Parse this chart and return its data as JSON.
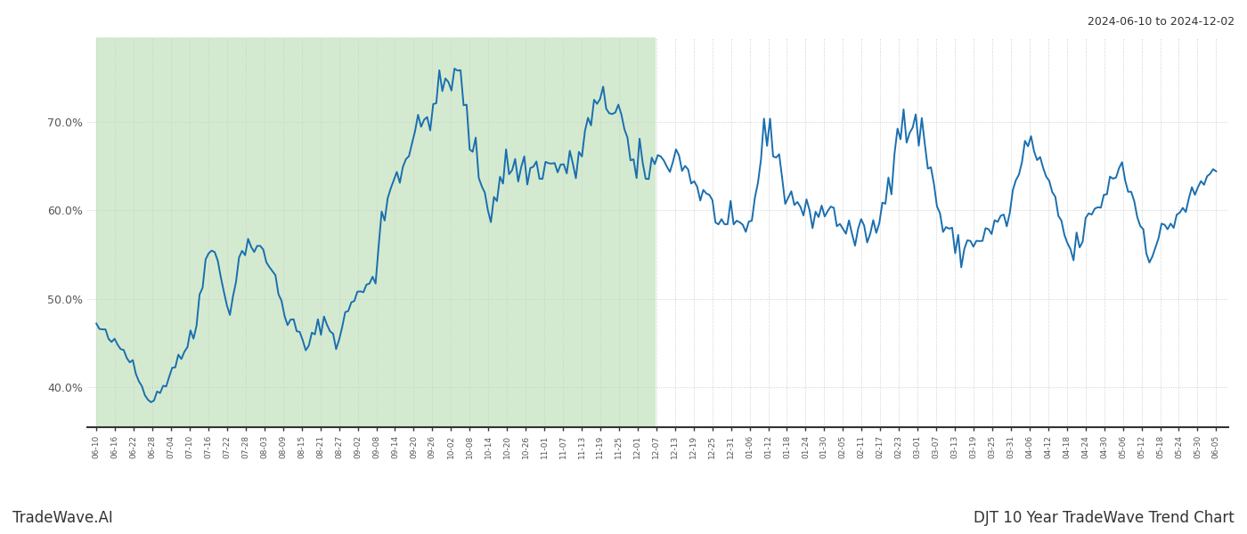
{
  "title_right": "2024-06-10 to 2024-12-02",
  "footer_left": "TradeWave.AI",
  "footer_right": "DJT 10 Year TradeWave Trend Chart",
  "shaded_color": "#d4ead0",
  "line_color": "#1a6faf",
  "line_width": 1.4,
  "ylim": [
    0.355,
    0.795
  ],
  "yticks": [
    0.4,
    0.5,
    0.6,
    0.7
  ],
  "ytick_labels": [
    "40.0%",
    "50.0%",
    "60.0%",
    "70.0%"
  ],
  "x_labels": [
    "06-10",
    "06-16",
    "06-22",
    "06-28",
    "07-04",
    "07-10",
    "07-16",
    "07-22",
    "07-28",
    "08-03",
    "08-09",
    "08-15",
    "08-21",
    "08-27",
    "09-02",
    "09-08",
    "09-14",
    "09-20",
    "09-26",
    "10-02",
    "10-08",
    "10-14",
    "10-20",
    "10-26",
    "11-01",
    "11-07",
    "11-13",
    "11-19",
    "11-25",
    "12-01",
    "12-07",
    "12-13",
    "12-19",
    "12-25",
    "12-31",
    "01-06",
    "01-12",
    "01-18",
    "01-24",
    "01-30",
    "02-05",
    "02-11",
    "02-17",
    "02-23",
    "03-01",
    "03-07",
    "03-13",
    "03-19",
    "03-25",
    "03-31",
    "04-06",
    "04-12",
    "04-18",
    "04-24",
    "04-30",
    "05-06",
    "05-12",
    "05-18",
    "05-24",
    "05-30",
    "06-05"
  ],
  "background_color": "#ffffff",
  "grid_color": "#cccccc",
  "grid_linestyle": ":"
}
